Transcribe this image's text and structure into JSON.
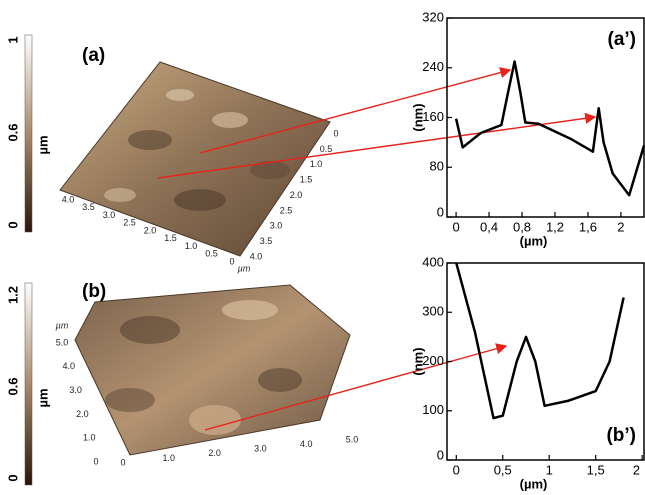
{
  "panels": [
    {
      "label": "(a)",
      "colorbar_ticks": [
        "1",
        "0.6",
        "0"
      ],
      "colorbar_unit": "µm",
      "axis1_ticks": [
        "0",
        "0.5",
        "1.0",
        "1.5",
        "2.0",
        "2.5",
        "3.0",
        "3.5",
        "4.0"
      ],
      "axis2_ticks": [
        "4.0",
        "3.5",
        "3.0",
        "2.5",
        "2.0",
        "1.5",
        "1.0",
        "0.5",
        "0"
      ],
      "axis_unit": "µm"
    },
    {
      "label": "(b)",
      "colorbar_ticks": [
        "1.2",
        "0.6",
        "0"
      ],
      "colorbar_unit": "µm",
      "axis1_ticks": [
        "5.0",
        "4.0",
        "3.0",
        "2.0",
        "1.0",
        "0"
      ],
      "axis2_ticks": [
        "0",
        "1.0",
        "2.0",
        "3.0",
        "4.0",
        "5.0"
      ],
      "axis_unit": "µm"
    }
  ],
  "chart_data": [
    {
      "type": "line",
      "annotation": "(a’)",
      "xlabel": "(µm)",
      "ylabel": "(nm)",
      "x": [
        0,
        0.08,
        0.3,
        0.55,
        0.63,
        0.71,
        0.78,
        0.84,
        1.0,
        1.4,
        1.66,
        1.73,
        1.79,
        1.9,
        2.1,
        2.28
      ],
      "values": [
        158,
        112,
        135,
        148,
        200,
        250,
        200,
        152,
        150,
        125,
        105,
        175,
        120,
        70,
        35,
        115
      ],
      "color": "#000000",
      "xlim": [
        -0.11,
        2.28
      ],
      "ylim": [
        0,
        320
      ],
      "xticks": [
        0,
        {
          "value": 0.4,
          "label": "0,4"
        },
        {
          "value": 0.8,
          "label": "0,8"
        },
        {
          "value": 1.2,
          "label": "1,2"
        },
        {
          "value": 1.6,
          "label": "1,6"
        },
        2
      ],
      "yticks": [
        0,
        80,
        160,
        240,
        320
      ]
    },
    {
      "type": "line",
      "annotation": "(b’)",
      "xlabel": "(µm)",
      "ylabel": "(nm)",
      "x": [
        0,
        0.2,
        0.4,
        0.5,
        0.65,
        0.75,
        0.85,
        0.95,
        1.2,
        1.5,
        1.65,
        1.8
      ],
      "values": [
        400,
        260,
        85,
        90,
        200,
        250,
        200,
        110,
        120,
        140,
        200,
        330
      ],
      "color": "#000000",
      "xlim": [
        -0.1,
        2.02
      ],
      "ylim": [
        0,
        400
      ],
      "xticks": [
        0,
        {
          "value": 0.5,
          "label": "0,5"
        },
        1,
        {
          "value": 1.5,
          "label": "1,5"
        },
        2
      ],
      "yticks": [
        0,
        100,
        200,
        300,
        400
      ]
    }
  ]
}
